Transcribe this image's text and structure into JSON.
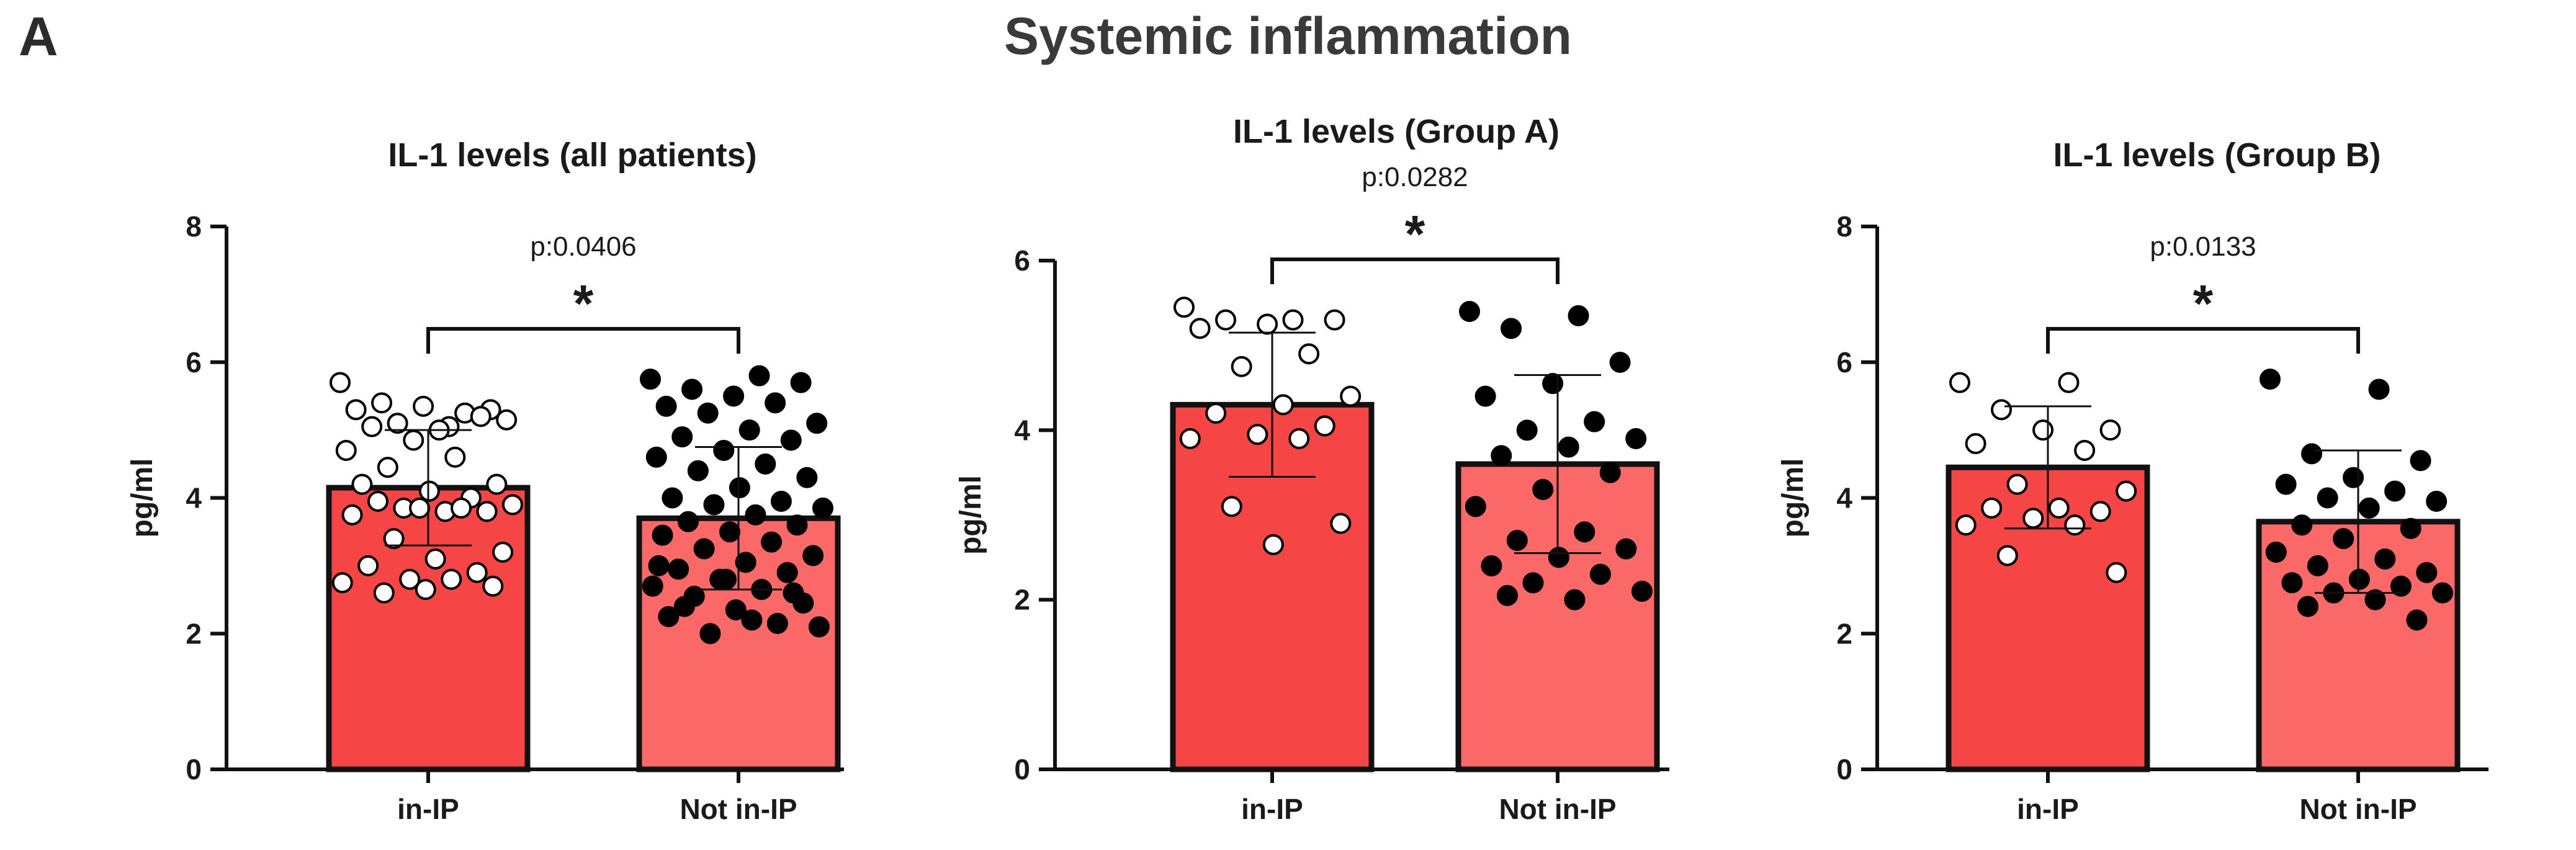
{
  "panel_letter": "A",
  "figure_title": "Systemic inflammation",
  "colors": {
    "bar_in": "#f54545",
    "bar_not": "#fb6868",
    "stroke": "#111111",
    "text": "#1a1a1a"
  },
  "chart_data": [
    {
      "type": "bar",
      "title": "IL-1 levels (all patients)",
      "ylabel": "pg/ml",
      "xlabel": "",
      "ylim": [
        0,
        8
      ],
      "yticks": [
        0,
        2,
        4,
        6,
        8
      ],
      "categories": [
        "in-IP",
        "Not in-IP"
      ],
      "values": [
        4.15,
        3.7
      ],
      "sd": [
        0.85,
        1.05
      ],
      "p_label": "p:0.0406",
      "sig_label": "*",
      "points": [
        [
          5.7,
          5.05,
          5.4,
          5.3,
          5.35,
          5.3,
          5.25,
          5.1,
          5.15,
          5.0,
          5.05,
          5.2,
          4.85,
          4.7,
          4.6,
          4.45,
          4.2,
          4.1,
          4.2,
          4.0,
          3.85,
          3.9,
          3.8,
          3.95,
          3.8,
          3.85,
          3.75,
          3.85,
          3.4,
          3.2,
          3.1,
          3.0,
          2.9,
          2.8,
          2.75,
          2.8,
          2.6,
          2.7,
          2.65
        ],
        [
          5.75,
          5.8,
          5.6,
          5.7,
          5.5,
          5.35,
          5.4,
          5.25,
          5.1,
          5.0,
          4.9,
          4.85,
          4.7,
          4.6,
          4.5,
          4.4,
          4.3,
          4.15,
          4.0,
          3.95,
          3.9,
          3.85,
          3.75,
          3.65,
          3.6,
          3.5,
          3.45,
          3.35,
          3.25,
          3.15,
          3.05,
          2.95,
          2.9,
          2.8,
          2.7,
          2.65,
          2.55,
          2.45,
          2.35,
          2.25,
          2.15,
          2.0,
          2.1,
          2.2,
          2.4,
          2.6,
          2.8,
          3.0
        ]
      ]
    },
    {
      "type": "bar",
      "title": "IL-1 levels (Group A)",
      "ylabel": "pg/ml",
      "xlabel": "",
      "ylim": [
        0,
        6
      ],
      "yticks": [
        0,
        2,
        4,
        6
      ],
      "categories": [
        "in-IP",
        "Not in-IP"
      ],
      "values": [
        4.3,
        3.6
      ],
      "sd": [
        0.85,
        1.05
      ],
      "p_label": "p:0.0282",
      "sig_label": "*",
      "points": [
        [
          5.45,
          5.3,
          5.3,
          5.3,
          5.25,
          5.2,
          4.9,
          4.75,
          4.4,
          4.3,
          4.2,
          4.05,
          3.95,
          3.9,
          3.9,
          3.1,
          2.9,
          2.65
        ],
        [
          5.4,
          5.35,
          5.2,
          4.8,
          4.55,
          4.4,
          4.1,
          4.0,
          3.9,
          3.8,
          3.7,
          3.5,
          3.3,
          3.1,
          2.8,
          2.7,
          2.6,
          2.5,
          2.4,
          2.3,
          2.2,
          2.1,
          2.0,
          2.05
        ]
      ]
    },
    {
      "type": "bar",
      "title": "IL-1 levels (Group B)",
      "ylabel": "pg/ml",
      "xlabel": "",
      "ylim": [
        0,
        8
      ],
      "yticks": [
        0,
        2,
        4,
        6,
        8
      ],
      "categories": [
        "in-IP",
        "Not in-IP"
      ],
      "values": [
        4.45,
        3.65
      ],
      "sd": [
        0.9,
        1.05
      ],
      "p_label": "p:0.0133",
      "sig_label": "*",
      "points": [
        [
          5.7,
          5.7,
          5.3,
          5.0,
          5.0,
          4.8,
          4.7,
          4.2,
          4.1,
          3.85,
          3.85,
          3.8,
          3.7,
          3.6,
          3.6,
          3.15,
          2.9
        ],
        [
          5.75,
          5.6,
          4.65,
          4.55,
          4.3,
          4.2,
          4.1,
          4.0,
          3.95,
          3.85,
          3.6,
          3.55,
          3.4,
          3.2,
          3.1,
          3.0,
          2.9,
          2.8,
          2.75,
          2.7,
          2.6,
          2.6,
          2.5,
          2.4,
          2.2
        ]
      ]
    }
  ]
}
